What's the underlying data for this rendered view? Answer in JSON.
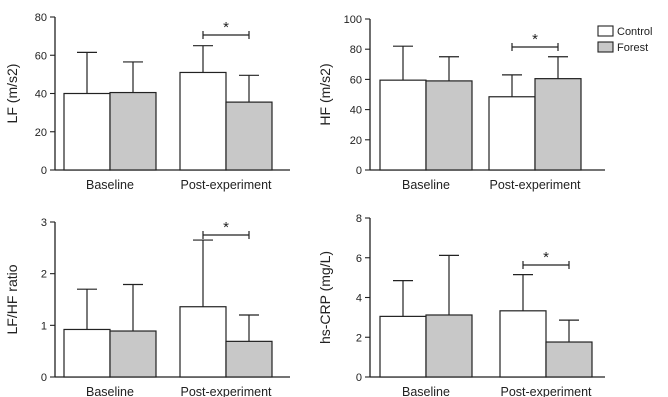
{
  "colors": {
    "control": "#ffffff",
    "forest": "#c8c8c8",
    "axis": "#222222"
  },
  "legend": {
    "placement": "top-right",
    "items": [
      "Control",
      "Forest"
    ]
  },
  "chart_data": [
    {
      "type": "bar",
      "ylabel": "LF (m/s2)",
      "ylim": [
        0,
        80
      ],
      "yticks": [
        "0",
        "20",
        "40",
        "60",
        "80"
      ],
      "categories": [
        "Baseline",
        "Post-experiment"
      ],
      "series": [
        {
          "name": "Control",
          "values": [
            40,
            51
          ],
          "errors": [
            21.5,
            14
          ]
        },
        {
          "name": "Forest",
          "values": [
            40.5,
            35.5
          ],
          "errors": [
            16,
            14
          ]
        }
      ],
      "significance": {
        "category": 1,
        "label": "*"
      }
    },
    {
      "type": "bar",
      "ylabel": "HF (m/s2)",
      "ylim": [
        0,
        100
      ],
      "yticks": [
        "0",
        "20",
        "40",
        "60",
        "80",
        "100"
      ],
      "categories": [
        "Baseline",
        "Post-experiment"
      ],
      "series": [
        {
          "name": "Control",
          "values": [
            59.5,
            48.5
          ],
          "errors": [
            22.5,
            14.5
          ]
        },
        {
          "name": "Forest",
          "values": [
            59,
            60.5
          ],
          "errors": [
            16,
            14.5
          ]
        }
      ],
      "significance": {
        "category": 1,
        "label": "*"
      }
    },
    {
      "type": "bar",
      "ylabel": "LF/HF ratio",
      "ylim": [
        0,
        3
      ],
      "yticks": [
        "0",
        "1",
        "2",
        "3"
      ],
      "categories": [
        "Baseline",
        "Post-experiment"
      ],
      "series": [
        {
          "name": "Control",
          "values": [
            0.92,
            1.36
          ],
          "errors": [
            0.78,
            1.29
          ]
        },
        {
          "name": "Forest",
          "values": [
            0.89,
            0.69
          ],
          "errors": [
            0.9,
            0.51
          ]
        }
      ],
      "significance": {
        "category": 1,
        "label": "*"
      }
    },
    {
      "type": "bar",
      "ylabel": "hs-CRP (mg/L)",
      "ylim": [
        0,
        8
      ],
      "yticks": [
        "0",
        "2",
        "4",
        "6",
        "8"
      ],
      "categories": [
        "Baseline",
        "Post-experiment"
      ],
      "series": [
        {
          "name": "Control",
          "values": [
            3.05,
            3.33
          ],
          "errors": [
            1.8,
            1.82
          ]
        },
        {
          "name": "Forest",
          "values": [
            3.12,
            1.76
          ],
          "errors": [
            3.0,
            1.1
          ]
        }
      ],
      "significance": {
        "category": 1,
        "label": "*"
      }
    }
  ]
}
